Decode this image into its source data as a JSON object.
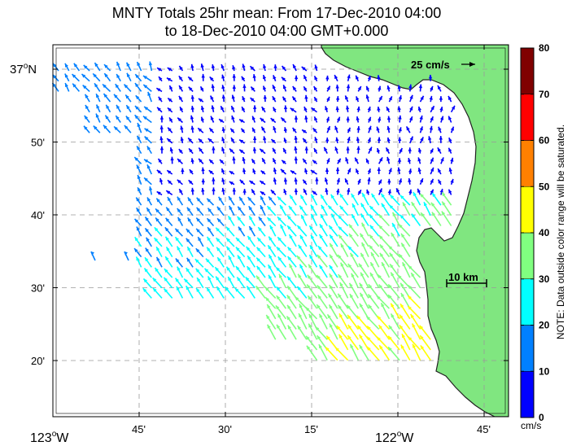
{
  "title_line1": "MNTY Totals 25hr mean: From 17-Dec-2010 04:00",
  "title_line2": "to 18-Dec-2010 04:00 GMT+0.000",
  "lat_labels": [
    {
      "label": "37",
      "suffix": "N",
      "sup": "o",
      "lat": 37.0
    },
    {
      "label": "50'",
      "lat": 36.8333
    },
    {
      "label": "40'",
      "lat": 36.6667
    },
    {
      "label": "30'",
      "lat": 36.5
    },
    {
      "label": "20'",
      "lat": 36.3333
    }
  ],
  "lon_labels": [
    {
      "label": "123",
      "suffix": "W",
      "sup": "o",
      "lon": -123.0
    },
    {
      "label": "45'",
      "lon": -122.75
    },
    {
      "label": "30'",
      "lon": -122.5
    },
    {
      "label": "15'",
      "lon": -122.25
    },
    {
      "label": "122",
      "suffix": "W",
      "sup": "o",
      "lon": -122.0
    },
    {
      "label": "45'",
      "lon": -121.75
    }
  ],
  "reference_vector_label": "25 cm/s",
  "scale_bar_label": "10 km",
  "colorbar": {
    "ticks": [
      "0",
      "10",
      "20",
      "30",
      "40",
      "50",
      "60",
      "70",
      "80"
    ],
    "colors": [
      "#0000ff",
      "#0080ff",
      "#00ffff",
      "#80ff80",
      "#ffff00",
      "#ff8000",
      "#ff0000",
      "#800000"
    ],
    "unit": "cm/s",
    "note": "NOTE: Data outside color range will be saturated."
  },
  "land_color": "#80e680",
  "grid": true
}
